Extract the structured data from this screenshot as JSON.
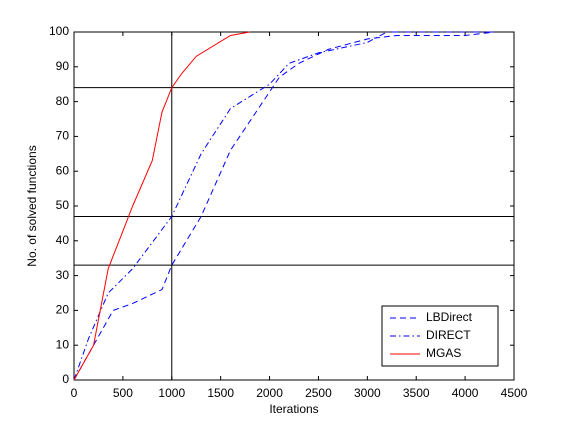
{
  "chart_data": {
    "type": "line",
    "xlabel": "Iterations",
    "ylabel": "No. of solved functions",
    "xlim": [
      0,
      4500
    ],
    "xticks": [
      0,
      500,
      1000,
      1500,
      2000,
      2500,
      3000,
      3500,
      4000,
      4500
    ],
    "ylim": [
      0,
      100
    ],
    "yticks": [
      0,
      10,
      20,
      30,
      40,
      50,
      60,
      70,
      80,
      90,
      100
    ],
    "legend": "lower right",
    "reference_lines": {
      "x": [
        1000
      ],
      "y": [
        84,
        47,
        33
      ],
      "color": "#000000"
    },
    "series": [
      {
        "name": "LBDirect",
        "color": "#0000ff",
        "dash": "6,4",
        "x": [
          0,
          200,
          400,
          600,
          900,
          1000,
          1300,
          1600,
          2100,
          2300,
          2600,
          3000,
          3300,
          4000,
          4300
        ],
        "values": [
          0,
          10,
          20,
          22,
          26,
          33,
          47,
          66,
          87,
          91,
          95,
          98,
          99,
          99,
          100
        ]
      },
      {
        "name": "DIRECT",
        "color": "#0000ff",
        "dash": "6,3,1.5,3",
        "x": [
          0,
          150,
          350,
          600,
          1000,
          1200,
          1300,
          1600,
          2000,
          2200,
          2500,
          3000,
          3200,
          4300
        ],
        "values": [
          0,
          12,
          25,
          32,
          47,
          59,
          65,
          78,
          85,
          91,
          94,
          97,
          100,
          100
        ]
      },
      {
        "name": "MGAS",
        "color": "#ff0000",
        "dash": "none",
        "x": [
          0,
          200,
          350,
          600,
          800,
          900,
          1000,
          1100,
          1250,
          1600,
          1800
        ],
        "values": [
          0,
          10,
          32,
          50,
          63,
          77,
          84,
          88,
          93,
          99,
          100
        ]
      }
    ]
  }
}
